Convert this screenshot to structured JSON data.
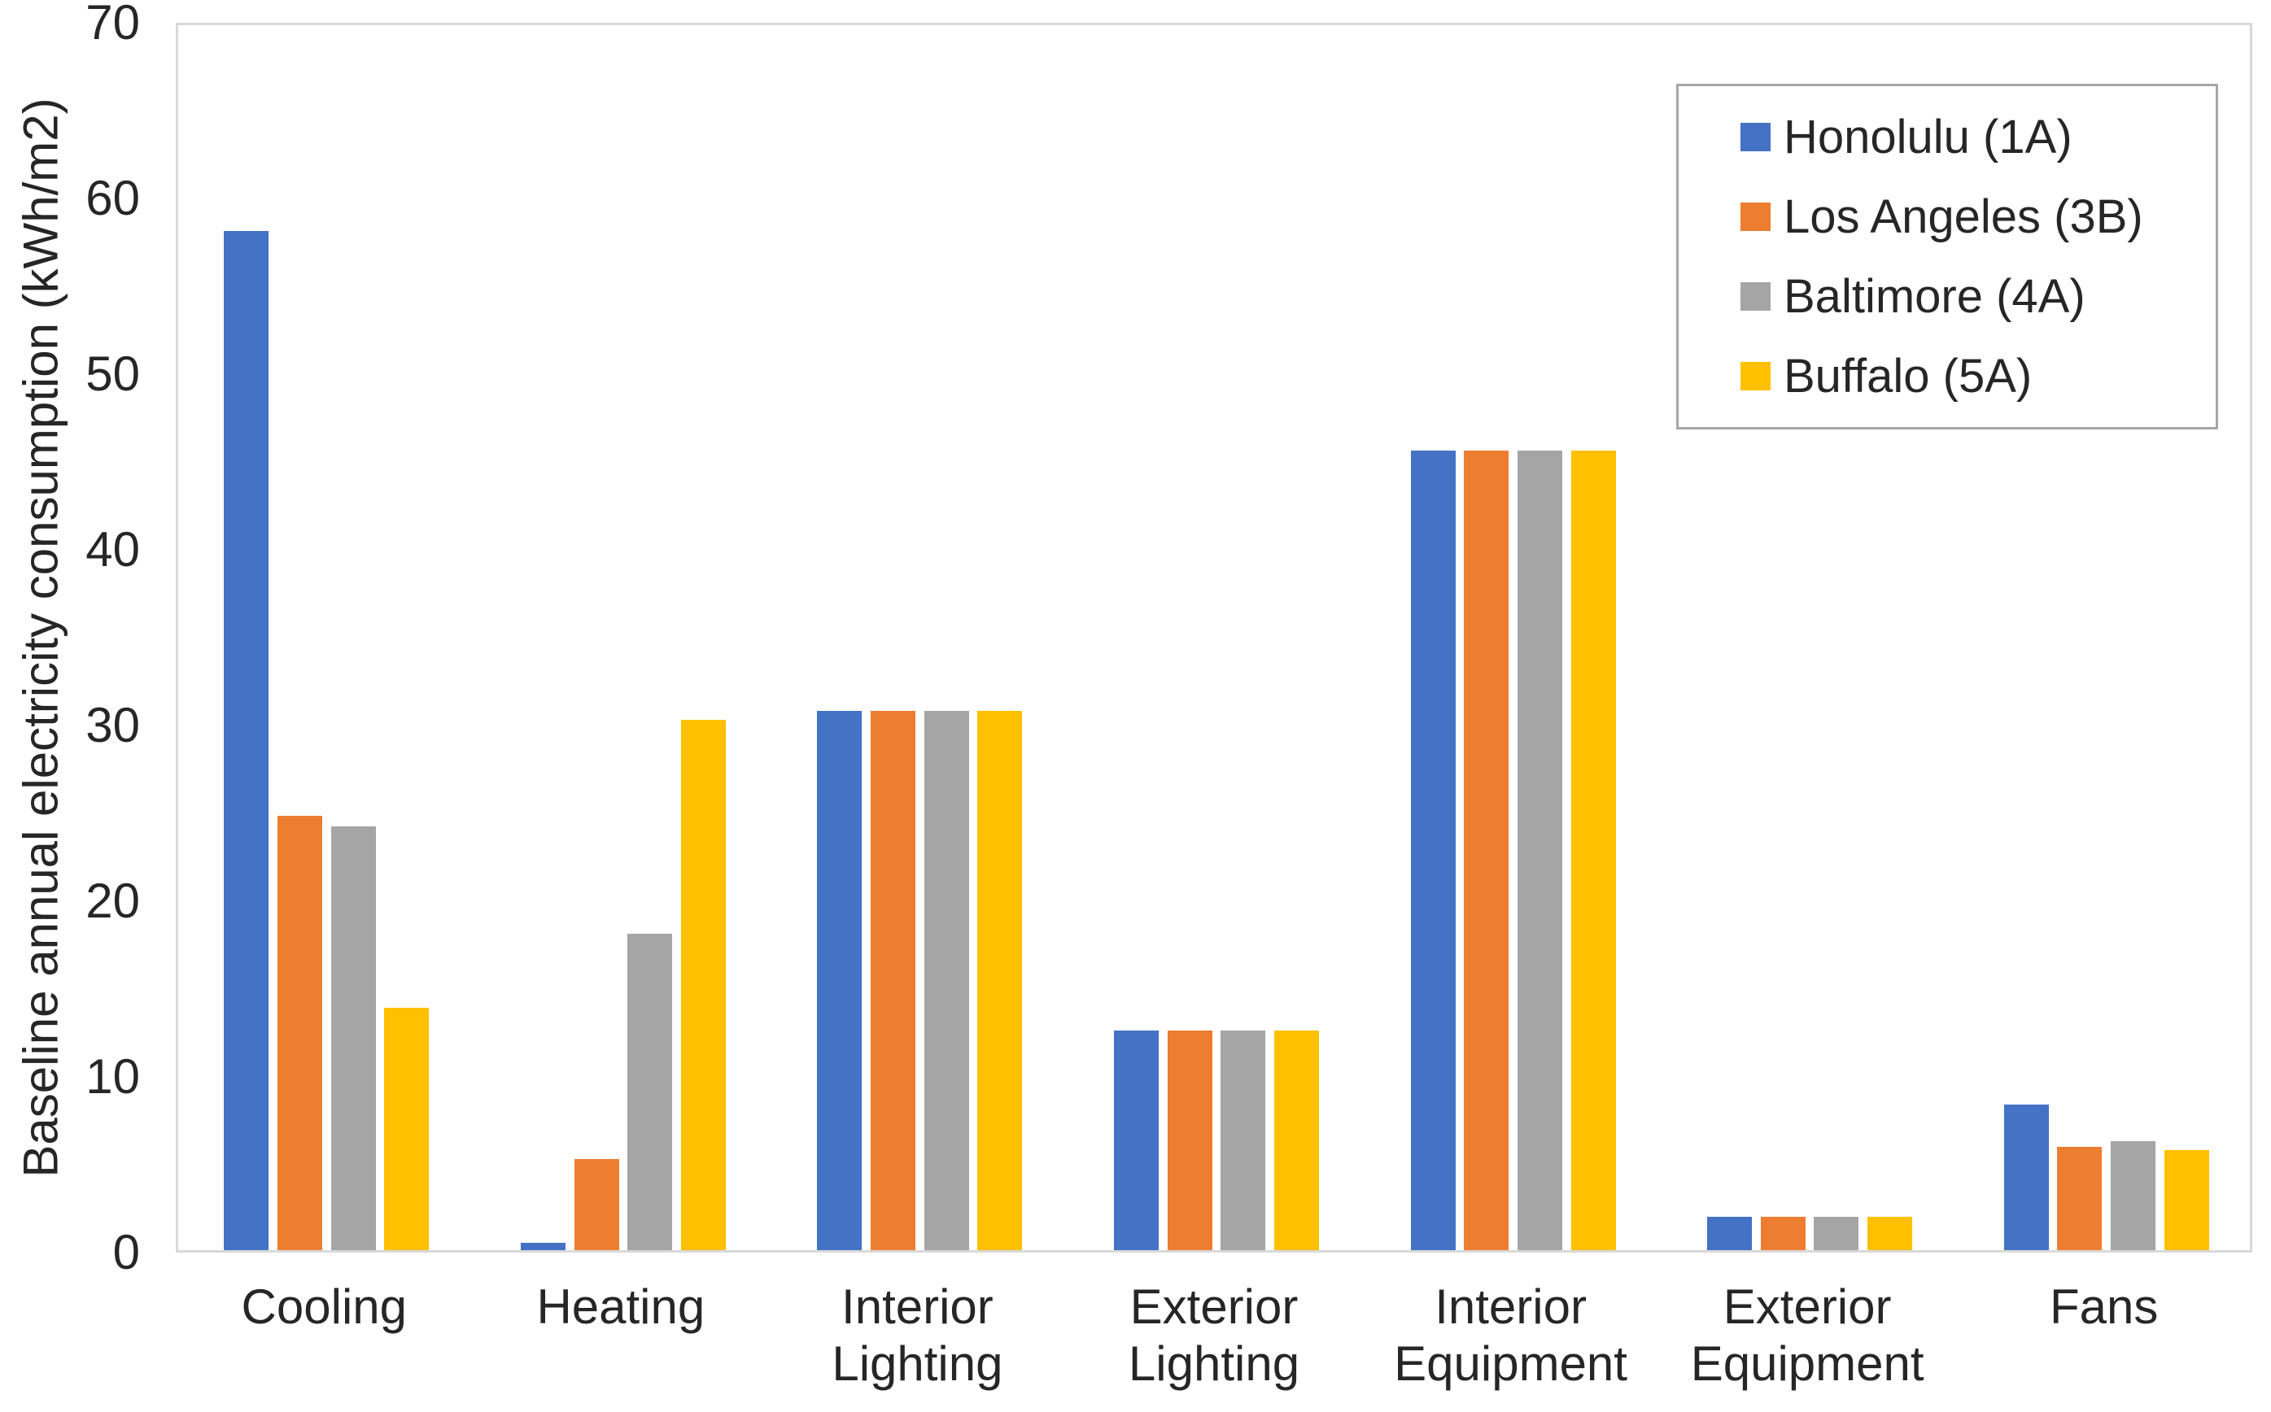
{
  "chart_data": {
    "type": "bar",
    "title": "",
    "categories": [
      "Cooling",
      "Heating",
      "Interior Lighting",
      "Exterior Lighting",
      "Interior Equipment",
      "Exterior Equipment",
      "Fans"
    ],
    "series": [
      {
        "name": "Honolulu (1A)",
        "color": "#4472C4",
        "values": [
          58.0,
          0.4,
          30.7,
          12.5,
          45.5,
          1.9,
          8.3
        ]
      },
      {
        "name": "Los Angeles (3B)",
        "color": "#ED7D31",
        "values": [
          24.7,
          5.2,
          30.7,
          12.5,
          45.5,
          1.9,
          5.9
        ]
      },
      {
        "name": "Baltimore (4A)",
        "color": "#A5A5A5",
        "values": [
          24.1,
          18.0,
          30.7,
          12.5,
          45.5,
          1.9,
          6.2
        ]
      },
      {
        "name": "Buffalo (5A)",
        "color": "#FFC000",
        "values": [
          13.8,
          30.2,
          30.7,
          12.5,
          45.5,
          1.9,
          5.7
        ]
      }
    ],
    "xlabel": "",
    "ylabel": "Baseline annual electricity consumption (kWh/m2)",
    "ylim": [
      0,
      70
    ],
    "ytick_step": 10,
    "ytick_labels": [
      "0",
      "10",
      "20",
      "30",
      "40",
      "50",
      "60",
      "70"
    ],
    "grid": false,
    "legend_position": "top-right"
  },
  "colors": {
    "plot_border": "#D9D9D9",
    "legend_border": "#A6A6A6",
    "text": "#262626",
    "background": "#FFFFFF"
  }
}
